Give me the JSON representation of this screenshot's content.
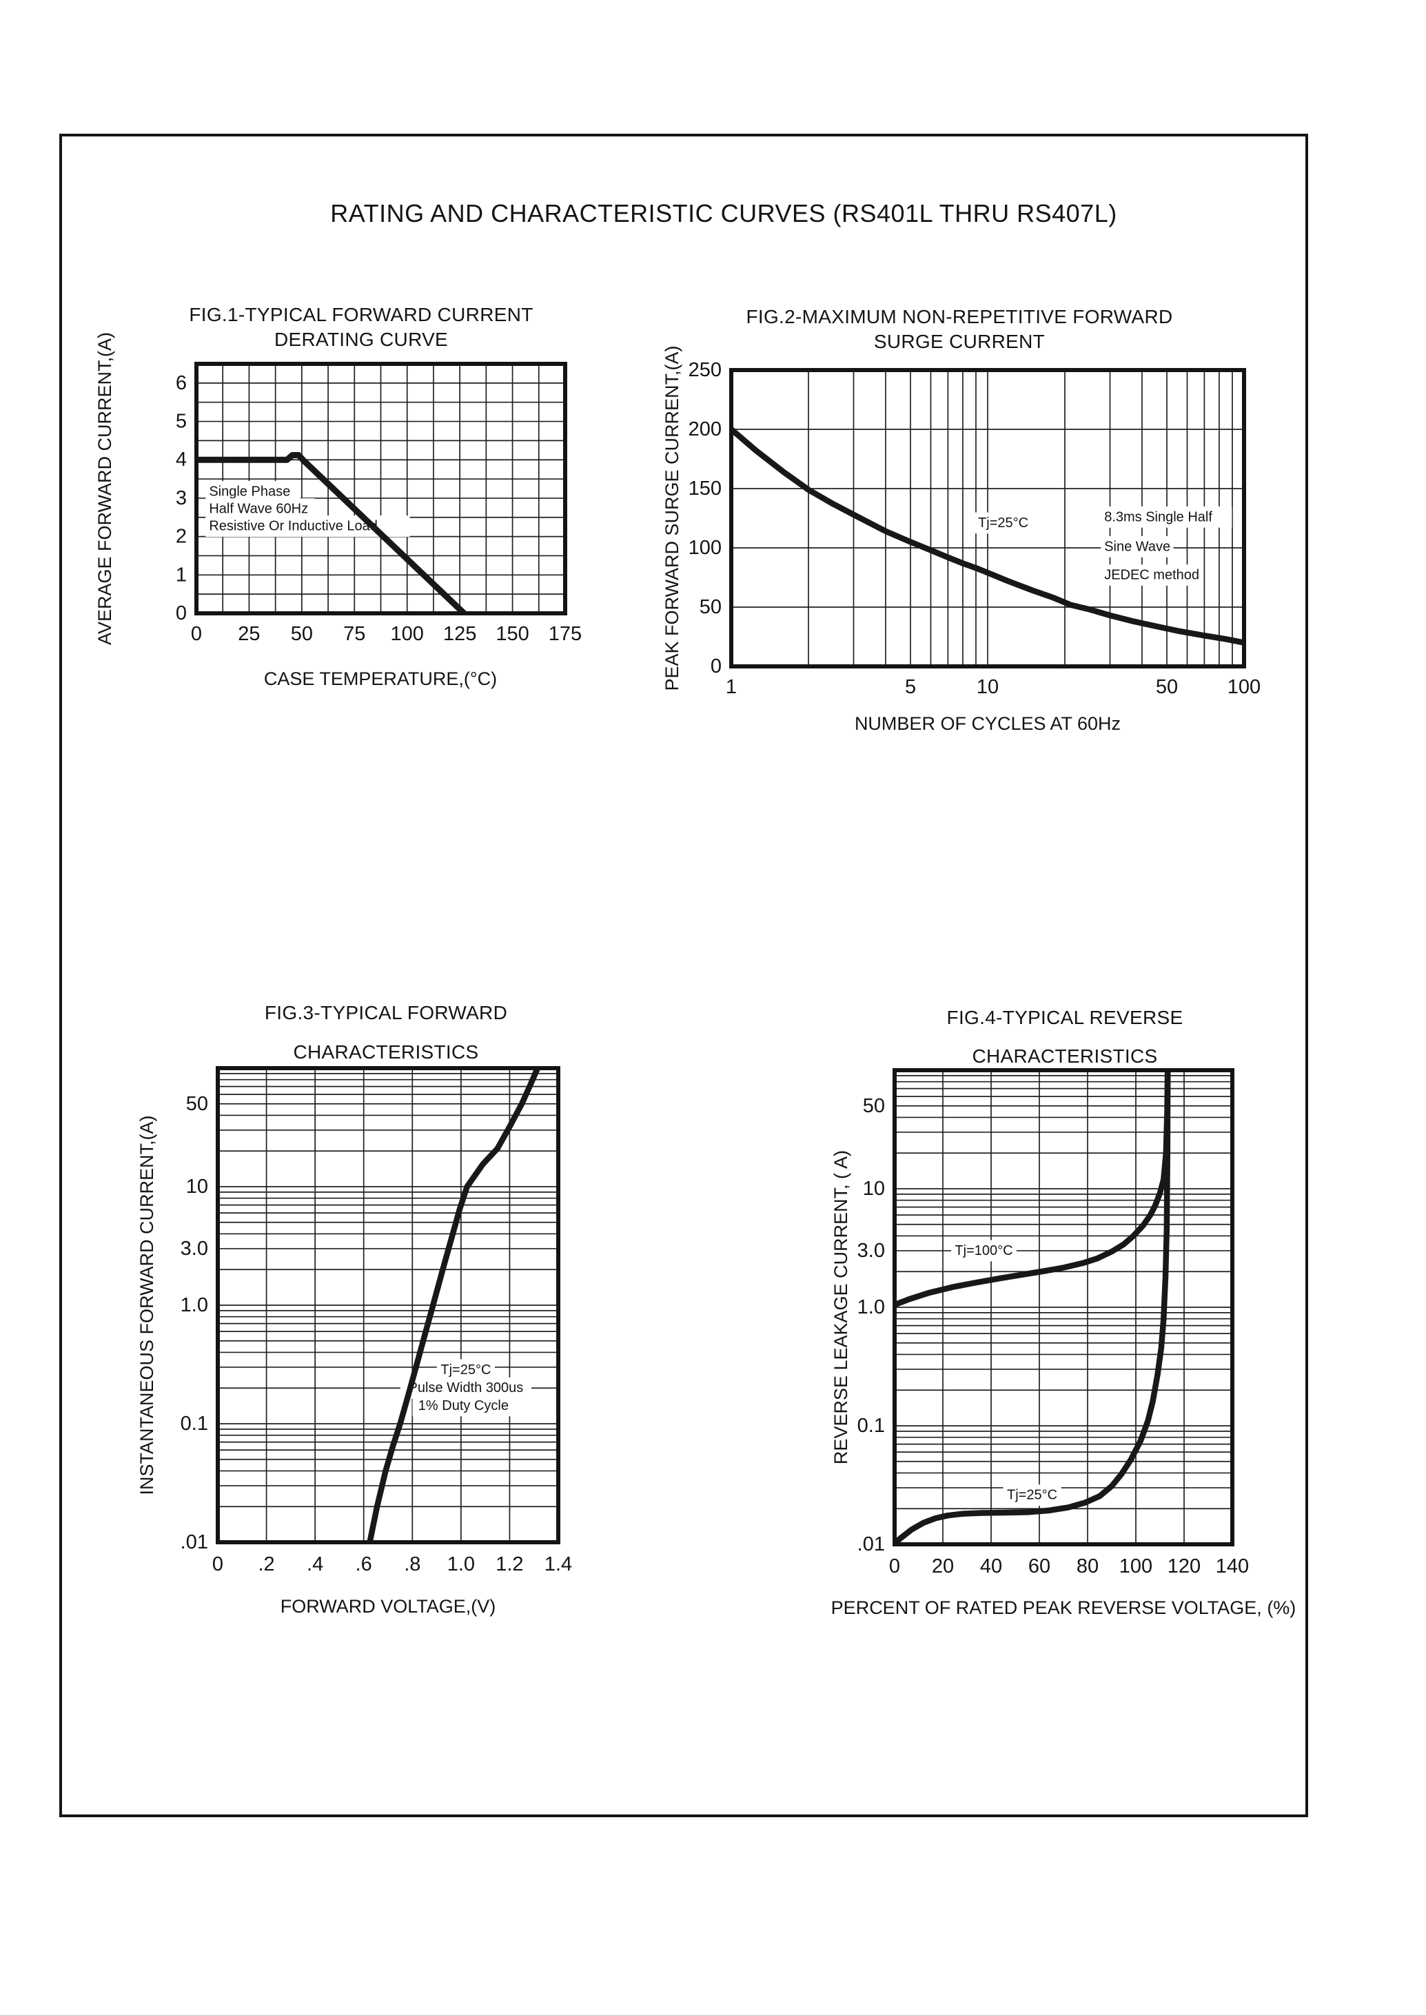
{
  "page": {
    "title": "RATING AND CHARACTERISTIC CURVES (RS401L THRU RS407L)"
  },
  "colors": {
    "ink": "#141414",
    "grid": "#202020",
    "curve": "#181818",
    "background": "#ffffff"
  },
  "chart_data": [
    {
      "id": "fig1",
      "type": "line",
      "title": "FIG.1-TYPICAL FORWARD CURRENT",
      "subtitle": "DERATING CURVE",
      "xlabel": "CASE TEMPERATURE,(°C)",
      "ylabel": "AVERAGE FORWARD CURRENT,(A)",
      "x_scale": "linear",
      "y_scale": "linear",
      "xlim": [
        0,
        175
      ],
      "ylim": [
        0,
        6.5
      ],
      "x_minor_step": 12.5,
      "y_minor_step": 0.5,
      "x_ticks": [
        {
          "v": 0,
          "label": "0"
        },
        {
          "v": 25,
          "label": "25"
        },
        {
          "v": 50,
          "label": "50"
        },
        {
          "v": 75,
          "label": "75"
        },
        {
          "v": 100,
          "label": "100"
        },
        {
          "v": 125,
          "label": "125"
        },
        {
          "v": 150,
          "label": "150"
        },
        {
          "v": 175,
          "label": "175"
        }
      ],
      "y_ticks": [
        {
          "v": 0,
          "label": "0"
        },
        {
          "v": 1,
          "label": "1"
        },
        {
          "v": 2,
          "label": "2"
        },
        {
          "v": 3,
          "label": "3"
        },
        {
          "v": 4,
          "label": "4"
        },
        {
          "v": 5,
          "label": "5"
        },
        {
          "v": 6,
          "label": "6"
        }
      ],
      "series": [
        {
          "name": "forward-current-derating",
          "points": [
            [
              0,
              4
            ],
            [
              43,
              4
            ],
            [
              45.5,
              4.12
            ],
            [
              48.5,
              4.12
            ],
            [
              50.5,
              4
            ],
            [
              127,
              0
            ]
          ]
        }
      ],
      "annotations": [
        {
          "text": "Single Phase",
          "x": 6,
          "y": 3.17,
          "align": "left"
        },
        {
          "text": "Half Wave 60Hz",
          "x": 6,
          "y": 2.72,
          "align": "left"
        },
        {
          "text": "Resistive Or Inductive Load",
          "x": 6,
          "y": 2.27,
          "align": "left"
        }
      ]
    },
    {
      "id": "fig2",
      "type": "line",
      "title": "FIG.2-MAXIMUM NON-REPETITIVE FORWARD",
      "subtitle": "SURGE CURRENT",
      "xlabel": "NUMBER OF CYCLES AT 60Hz",
      "ylabel": "PEAK FORWARD SURGE CURRENT,(A)",
      "x_scale": "log",
      "y_scale": "linear",
      "xlim": [
        1,
        100
      ],
      "ylim": [
        0,
        250
      ],
      "y_minor_step": 50,
      "x_ticks": [
        {
          "v": 1,
          "label": "1"
        },
        {
          "v": 5,
          "label": "5"
        },
        {
          "v": 10,
          "label": "10"
        },
        {
          "v": 50,
          "label": "50"
        },
        {
          "v": 100,
          "label": "100"
        }
      ],
      "y_ticks": [
        {
          "v": 0,
          "label": "0"
        },
        {
          "v": 50,
          "label": "50"
        },
        {
          "v": 100,
          "label": "100"
        },
        {
          "v": 150,
          "label": "150"
        },
        {
          "v": 200,
          "label": "200"
        },
        {
          "v": 250,
          "label": "250"
        }
      ],
      "series": [
        {
          "name": "peak-forward-surge",
          "points": [
            [
              1,
              200
            ],
            [
              1.25,
              182
            ],
            [
              1.6,
              164
            ],
            [
              2,
              149
            ],
            [
              2.5,
              137
            ],
            [
              3,
              128
            ],
            [
              4,
              114
            ],
            [
              5,
              105
            ],
            [
              6,
              98
            ],
            [
              7,
              92
            ],
            [
              8,
              87
            ],
            [
              9,
              83
            ],
            [
              10,
              79
            ],
            [
              12,
              72
            ],
            [
              15,
              64
            ],
            [
              18,
              58
            ],
            [
              21,
              52
            ],
            [
              25,
              48
            ],
            [
              30,
              43
            ],
            [
              37,
              38
            ],
            [
              45,
              34
            ],
            [
              55,
              30
            ],
            [
              70,
              26
            ],
            [
              85,
              23
            ],
            [
              100,
              20
            ]
          ]
        }
      ],
      "annotations": [
        {
          "text": "Tj=25°C",
          "x": 11.5,
          "y": 121,
          "align": "middle"
        },
        {
          "text": "8.3ms Single Half",
          "x": 28.5,
          "y": 126,
          "align": "left"
        },
        {
          "text": "Sine Wave",
          "x": 28.5,
          "y": 101,
          "align": "left"
        },
        {
          "text": "JEDEC method",
          "x": 28.5,
          "y": 77,
          "align": "left"
        }
      ]
    },
    {
      "id": "fig3",
      "type": "line",
      "title": "FIG.3-TYPICAL FORWARD",
      "subtitle": "CHARACTERISTICS",
      "xlabel": "FORWARD VOLTAGE,(V)",
      "ylabel": "INSTANTANEOUS FORWARD CURRENT,(A)",
      "x_scale": "linear",
      "y_scale": "log",
      "xlim": [
        0,
        1.4
      ],
      "ylim": [
        0.01,
        100
      ],
      "x_minor_step": 0.2,
      "x_ticks": [
        {
          "v": 0,
          "label": "0"
        },
        {
          "v": 0.2,
          "label": ".2"
        },
        {
          "v": 0.4,
          "label": ".4"
        },
        {
          "v": 0.6,
          "label": ".6"
        },
        {
          "v": 0.8,
          "label": ".8"
        },
        {
          "v": 1.0,
          "label": "1.0"
        },
        {
          "v": 1.2,
          "label": "1.2"
        },
        {
          "v": 1.4,
          "label": "1.4"
        }
      ],
      "y_ticks": [
        {
          "v": 50,
          "label": "50"
        },
        {
          "v": 10,
          "label": "10"
        },
        {
          "v": 3,
          "label": "3.0"
        },
        {
          "v": 1,
          "label": "1.0"
        },
        {
          "v": 0.1,
          "label": "0.1"
        },
        {
          "v": 0.01,
          "label": ".01"
        }
      ],
      "series": [
        {
          "name": "instantaneous-forward-tj25",
          "points": [
            [
              0.625,
              0.01
            ],
            [
              0.655,
              0.02
            ],
            [
              0.69,
              0.04
            ],
            [
              0.72,
              0.065
            ],
            [
              0.75,
              0.1
            ],
            [
              0.78,
              0.165
            ],
            [
              0.815,
              0.3
            ],
            [
              0.85,
              0.55
            ],
            [
              0.885,
              1.0
            ],
            [
              0.925,
              2.0
            ],
            [
              0.96,
              3.6
            ],
            [
              0.995,
              6.5
            ],
            [
              1.025,
              10
            ],
            [
              1.09,
              15.5
            ],
            [
              1.15,
              21
            ],
            [
              1.2,
              32
            ],
            [
              1.25,
              50
            ],
            [
              1.285,
              72
            ],
            [
              1.315,
              100
            ]
          ]
        }
      ],
      "annotations": [
        {
          "text": "Tj=25°C",
          "x": 1.02,
          "y": 0.285,
          "align": "middle"
        },
        {
          "text": "Pulse Width 300us",
          "x": 1.02,
          "y": 0.2,
          "align": "middle"
        },
        {
          "text": "1% Duty Cycle",
          "x": 1.01,
          "y": 0.142,
          "align": "middle"
        }
      ]
    },
    {
      "id": "fig4",
      "type": "line",
      "title": "FIG.4-TYPICAL REVERSE",
      "subtitle": "CHARACTERISTICS",
      "xlabel": "PERCENT OF RATED PEAK REVERSE VOLTAGE, (%)",
      "ylabel": "REVERSE LEAKAGE CURRENT, ( A)",
      "x_scale": "linear",
      "y_scale": "log",
      "xlim": [
        0,
        140
      ],
      "ylim": [
        0.01,
        100
      ],
      "x_minor_step": 20,
      "x_ticks": [
        {
          "v": 0,
          "label": "0"
        },
        {
          "v": 20,
          "label": "20"
        },
        {
          "v": 40,
          "label": "40"
        },
        {
          "v": 60,
          "label": "60"
        },
        {
          "v": 80,
          "label": "80"
        },
        {
          "v": 100,
          "label": "100"
        },
        {
          "v": 120,
          "label": "120"
        },
        {
          "v": 140,
          "label": "140"
        }
      ],
      "y_ticks": [
        {
          "v": 50,
          "label": "50"
        },
        {
          "v": 10,
          "label": "10"
        },
        {
          "v": 3,
          "label": "3.0"
        },
        {
          "v": 1,
          "label": "1.0"
        },
        {
          "v": 0.1,
          "label": "0.1"
        },
        {
          "v": 0.01,
          "label": ".01"
        }
      ],
      "series": [
        {
          "name": "reverse-leakage-tj100",
          "points": [
            [
              0,
              1.05
            ],
            [
              6,
              1.17
            ],
            [
              14,
              1.32
            ],
            [
              24,
              1.48
            ],
            [
              34,
              1.62
            ],
            [
              44,
              1.76
            ],
            [
              54,
              1.9
            ],
            [
              62,
              2.02
            ],
            [
              70,
              2.16
            ],
            [
              78,
              2.36
            ],
            [
              84,
              2.58
            ],
            [
              90,
              2.95
            ],
            [
              95,
              3.4
            ],
            [
              99,
              4.0
            ],
            [
              103,
              4.9
            ],
            [
              106,
              6.0
            ],
            [
              108,
              7.2
            ],
            [
              110,
              9.2
            ],
            [
              111.5,
              12
            ],
            [
              112.5,
              20
            ],
            [
              113,
              45
            ],
            [
              113.2,
              100
            ]
          ]
        },
        {
          "name": "reverse-leakage-tj25",
          "points": [
            [
              0,
              0.0102
            ],
            [
              3,
              0.0115
            ],
            [
              7,
              0.0133
            ],
            [
              12,
              0.0152
            ],
            [
              17,
              0.0166
            ],
            [
              22,
              0.0175
            ],
            [
              28,
              0.0181
            ],
            [
              36,
              0.0184
            ],
            [
              46,
              0.0185
            ],
            [
              56,
              0.0187
            ],
            [
              64,
              0.0193
            ],
            [
              72,
              0.0205
            ],
            [
              79,
              0.0225
            ],
            [
              85,
              0.0255
            ],
            [
              90,
              0.031
            ],
            [
              94,
              0.039
            ],
            [
              98,
              0.052
            ],
            [
              102,
              0.075
            ],
            [
              105,
              0.11
            ],
            [
              107,
              0.16
            ],
            [
              109,
              0.27
            ],
            [
              110.5,
              0.45
            ],
            [
              111.5,
              0.8
            ],
            [
              112.3,
              1.8
            ],
            [
              112.8,
              4.5
            ],
            [
              113.1,
              20
            ],
            [
              113.2,
              100
            ]
          ]
        }
      ],
      "annotations": [
        {
          "text": "Tj=100°C",
          "x": 37,
          "y": 3.0,
          "align": "middle"
        },
        {
          "text": "Tj=25°C",
          "x": 57,
          "y": 0.026,
          "align": "middle"
        }
      ]
    }
  ]
}
